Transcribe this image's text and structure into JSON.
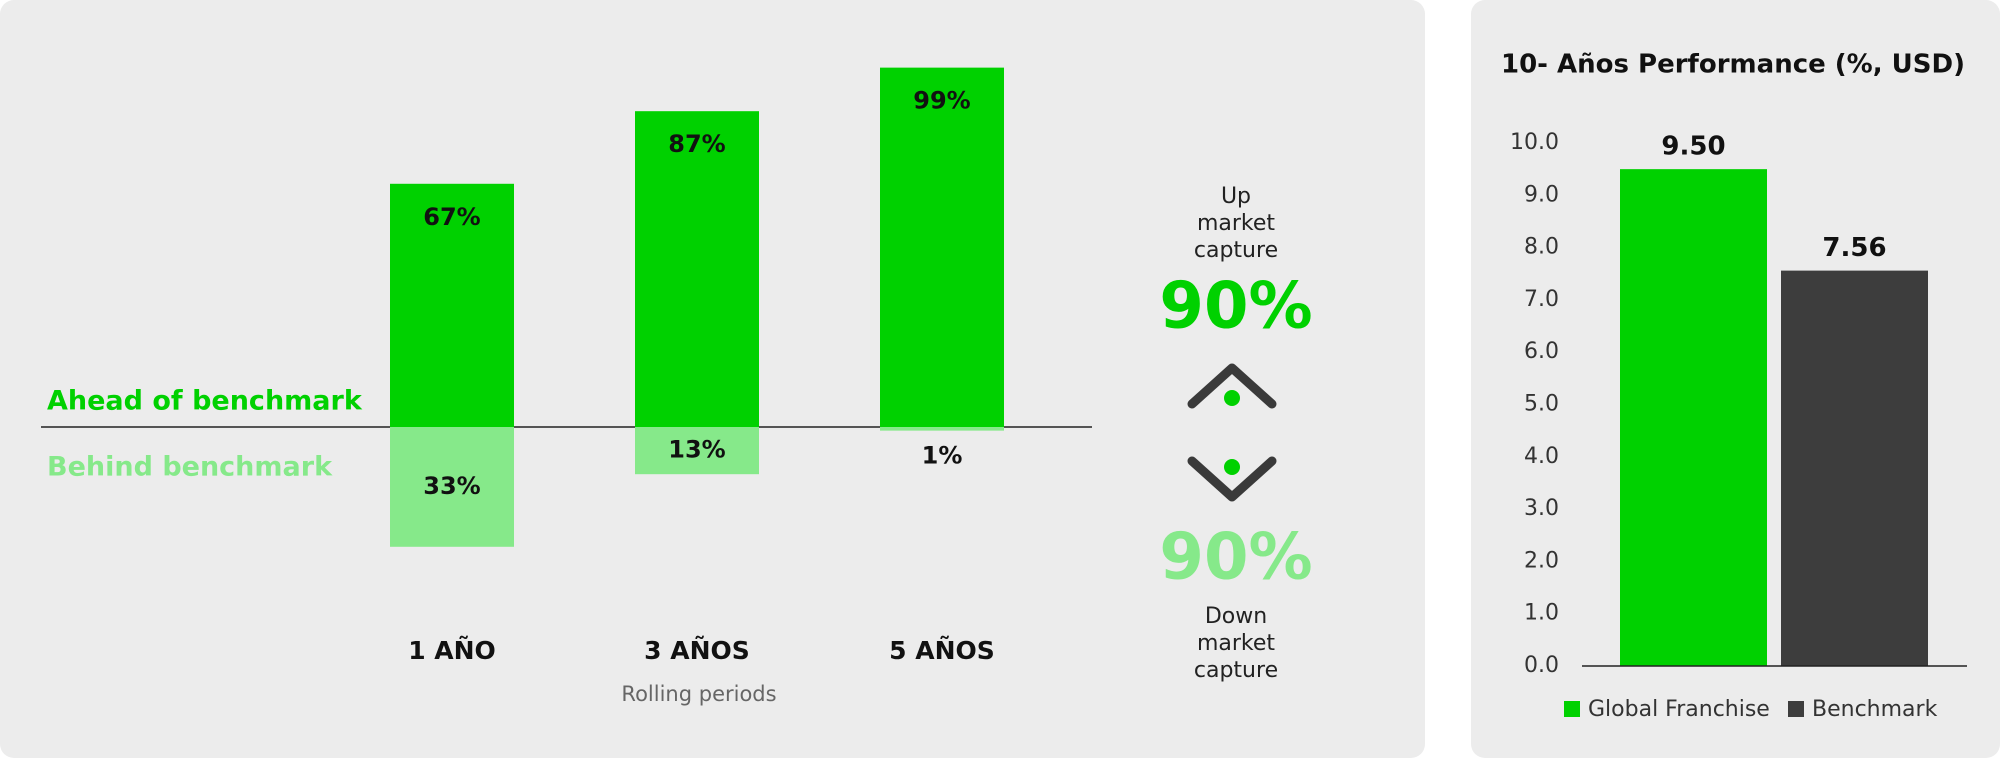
{
  "chart_data": [
    {
      "type": "diverging_bar",
      "categories": [
        "1 AÑO",
        "3 AÑOS",
        "5 AÑOS"
      ],
      "x_label": "Rolling periods",
      "series": [
        {
          "name": "Ahead of benchmark",
          "color": "#00d100",
          "values": [
            67,
            87,
            99
          ],
          "value_labels": [
            "67%",
            "87%",
            "99%"
          ]
        },
        {
          "name": "Behind benchmark",
          "color": "#86e98a",
          "values": [
            33,
            13,
            1
          ],
          "value_labels": [
            "33%",
            "13%",
            "1%"
          ]
        }
      ],
      "capture": {
        "labels": [
          "Up market capture",
          "Down market capture"
        ],
        "values": [
          90,
          90
        ],
        "value_labels": [
          "90%",
          "90%"
        ],
        "colors": [
          "#00d100",
          "#86e98a"
        ]
      }
    },
    {
      "type": "bar",
      "title": "10- Años Performance (%, USD)",
      "series": [
        {
          "name": "Global Franchise",
          "color": "#00d100",
          "values": [
            9.5
          ],
          "value_labels": [
            "9.50"
          ]
        },
        {
          "name": "Benchmark",
          "color": "#3d3d3d",
          "values": [
            7.56
          ]
        }
      ],
      "ylim": [
        0,
        10
      ],
      "yticks": [
        {
          "value": 0,
          "label": "0.0"
        },
        {
          "value": 1,
          "label": "1.0"
        },
        {
          "value": 2,
          "label": "2.0"
        },
        {
          "value": 3,
          "label": "3.0"
        },
        {
          "value": 4,
          "label": "4.0"
        },
        {
          "value": 5,
          "label": "5.0"
        },
        {
          "value": 6,
          "label": "6.0"
        },
        {
          "value": 7,
          "label": "7.0"
        },
        {
          "value": 8,
          "label": "8.0"
        },
        {
          "value": 9,
          "label": "9.0"
        },
        {
          "value": 10,
          "label": "10.0"
        }
      ],
      "grid": false,
      "legend": "bottom"
    }
  ]
}
